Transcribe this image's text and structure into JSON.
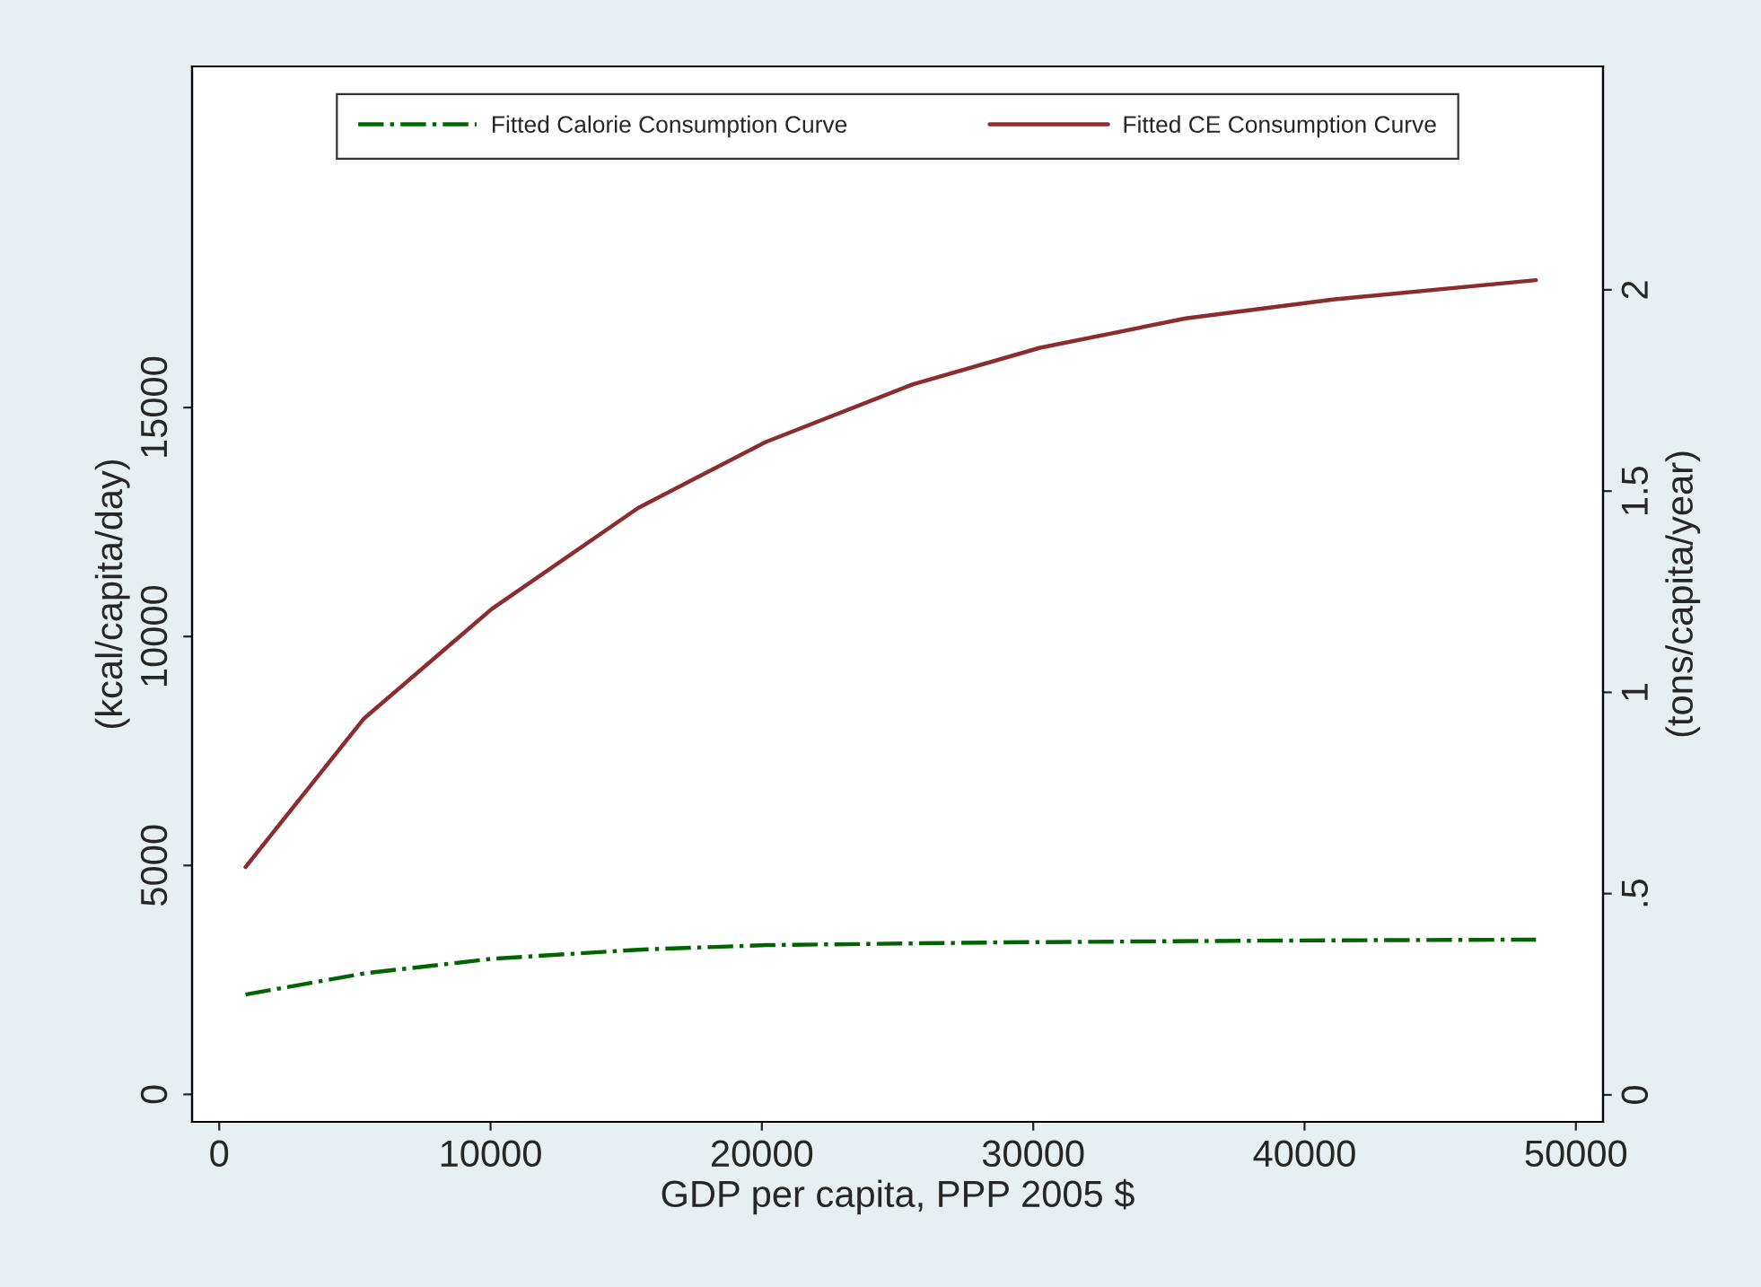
{
  "chart_data": {
    "type": "line",
    "xlabel": "GDP per capita, PPP 2005 $",
    "ylabel": "(kcal/capita/day)",
    "y2label": "(tons/capita/year)",
    "series": [
      {
        "name": "Fitted Calorie Consumption Curve",
        "color": "#006400",
        "line_style": "dashdot",
        "x": [
          970,
          5320,
          10040,
          15440,
          20140,
          28930,
          39040,
          48530
        ],
        "values": [
          2180,
          2640,
          2960,
          3160,
          3260,
          3320,
          3360,
          3380
        ]
      },
      {
        "name": "Fitted CE Consumption Curve",
        "color": "#8b2c2f",
        "line_style": "solid",
        "axis": "y2",
        "x": [
          970,
          5320,
          10040,
          15440,
          20140,
          25550,
          30250,
          35620,
          41040,
          48530
        ],
        "values": [
          0.566,
          0.934,
          1.207,
          1.458,
          1.622,
          1.765,
          1.856,
          1.929,
          1.976,
          2.024
        ]
      }
    ],
    "xlim": [
      -1000,
      51000
    ],
    "xticks": [
      0,
      10000,
      20000,
      30000,
      40000,
      50000
    ],
    "ylim": [
      -600,
      22450
    ],
    "yticks": [
      0,
      5000,
      10000,
      15000
    ],
    "y2lim": [
      -0.067,
      2.555
    ],
    "y2ticks": [
      0,
      {
        "value": 0.5,
        "label": ".5"
      },
      1,
      1.5,
      2
    ],
    "grid": false,
    "legend": "top",
    "marker": "none"
  }
}
